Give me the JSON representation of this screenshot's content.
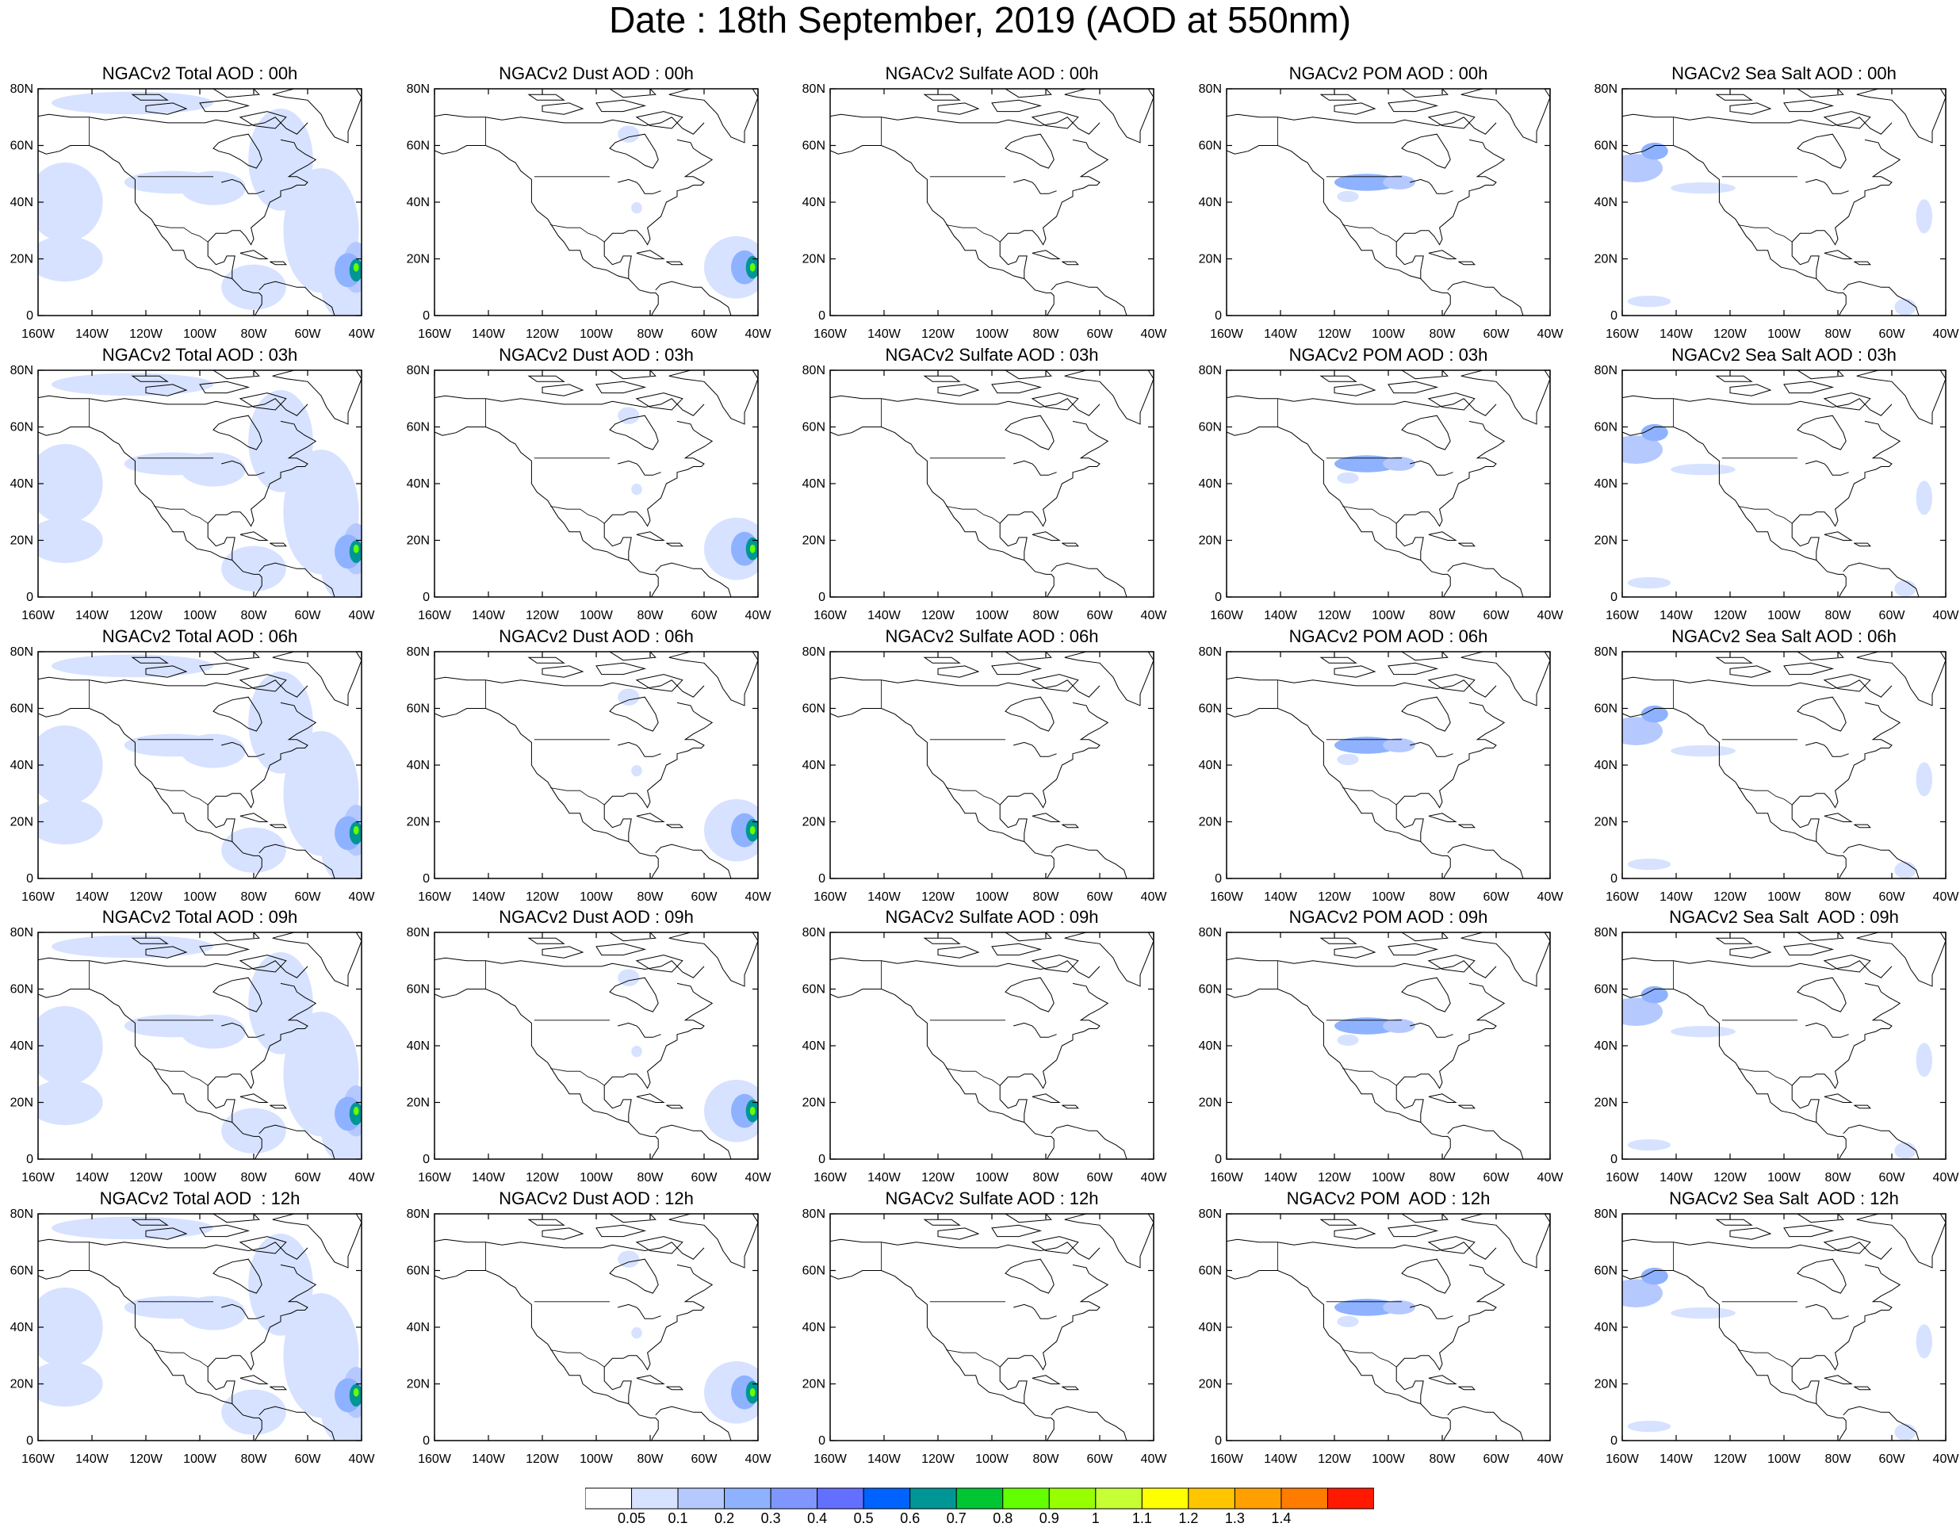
{
  "title": "Date : 18th September, 2019 (AOD at 550nm)",
  "lat_labels": [
    "80N",
    "60N",
    "40N",
    "20N",
    "0"
  ],
  "lon_labels": [
    "160W",
    "140W",
    "120W",
    "100W",
    "80W",
    "60W",
    "40W"
  ],
  "panel_titles": [
    [
      "NGACv2 Total AOD : 00h",
      "NGACv2 Dust AOD : 00h",
      "NGACv2 Sulfate AOD : 00h",
      "NGACv2 POM AOD : 00h",
      "NGACv2 Sea Salt AOD : 00h"
    ],
    [
      "NGACv2 Total AOD : 03h",
      "NGACv2 Dust AOD : 03h",
      "NGACv2 Sulfate AOD : 03h",
      "NGACv2 POM AOD : 03h",
      "NGACv2 Sea Salt AOD : 03h"
    ],
    [
      "NGACv2 Total AOD : 06h",
      "NGACv2 Dust AOD : 06h",
      "NGACv2 Sulfate AOD : 06h",
      "NGACv2 POM AOD : 06h",
      "NGACv2 Sea Salt AOD : 06h"
    ],
    [
      "NGACv2 Total AOD : 09h",
      "NGACv2 Dust AOD : 09h",
      "NGACv2 Sulfate AOD : 09h",
      "NGACv2 POM AOD : 09h",
      "NGACv2 Sea Salt  AOD : 09h"
    ],
    [
      "NGACv2 Total AOD  : 12h",
      "NGACv2 Dust AOD : 12h",
      "NGACv2 Sulfate AOD : 12h",
      "NGACv2 POM  AOD : 12h",
      "NGACv2 Sea Salt  AOD : 12h"
    ]
  ],
  "colorbar": {
    "labels": [
      "0.05",
      "0.1",
      "0.2",
      "0.3",
      "0.4",
      "0.5",
      "0.6",
      "0.7",
      "0.8",
      "0.9",
      "1",
      "1.1",
      "1.2",
      "1.3",
      "1.4"
    ],
    "colors": [
      "#ffffff",
      "#d6e2ff",
      "#b5c9ff",
      "#8eb2ff",
      "#7f96ff",
      "#6370ff",
      "#0063ff",
      "#009696",
      "#00c633",
      "#63ff00",
      "#96ff00",
      "#c6ff33",
      "#ffff00",
      "#ffc600",
      "#ffa000",
      "#ff7c00",
      "#ff1900"
    ]
  },
  "colors": {
    "aod_light": "#d6e2ff",
    "aod_mid": "#b5c9ff",
    "aod_blue": "#8eb2ff",
    "aod_dark": "#7f96ff",
    "aod_core": "#009696",
    "aod_peak": "#63ff00"
  }
}
